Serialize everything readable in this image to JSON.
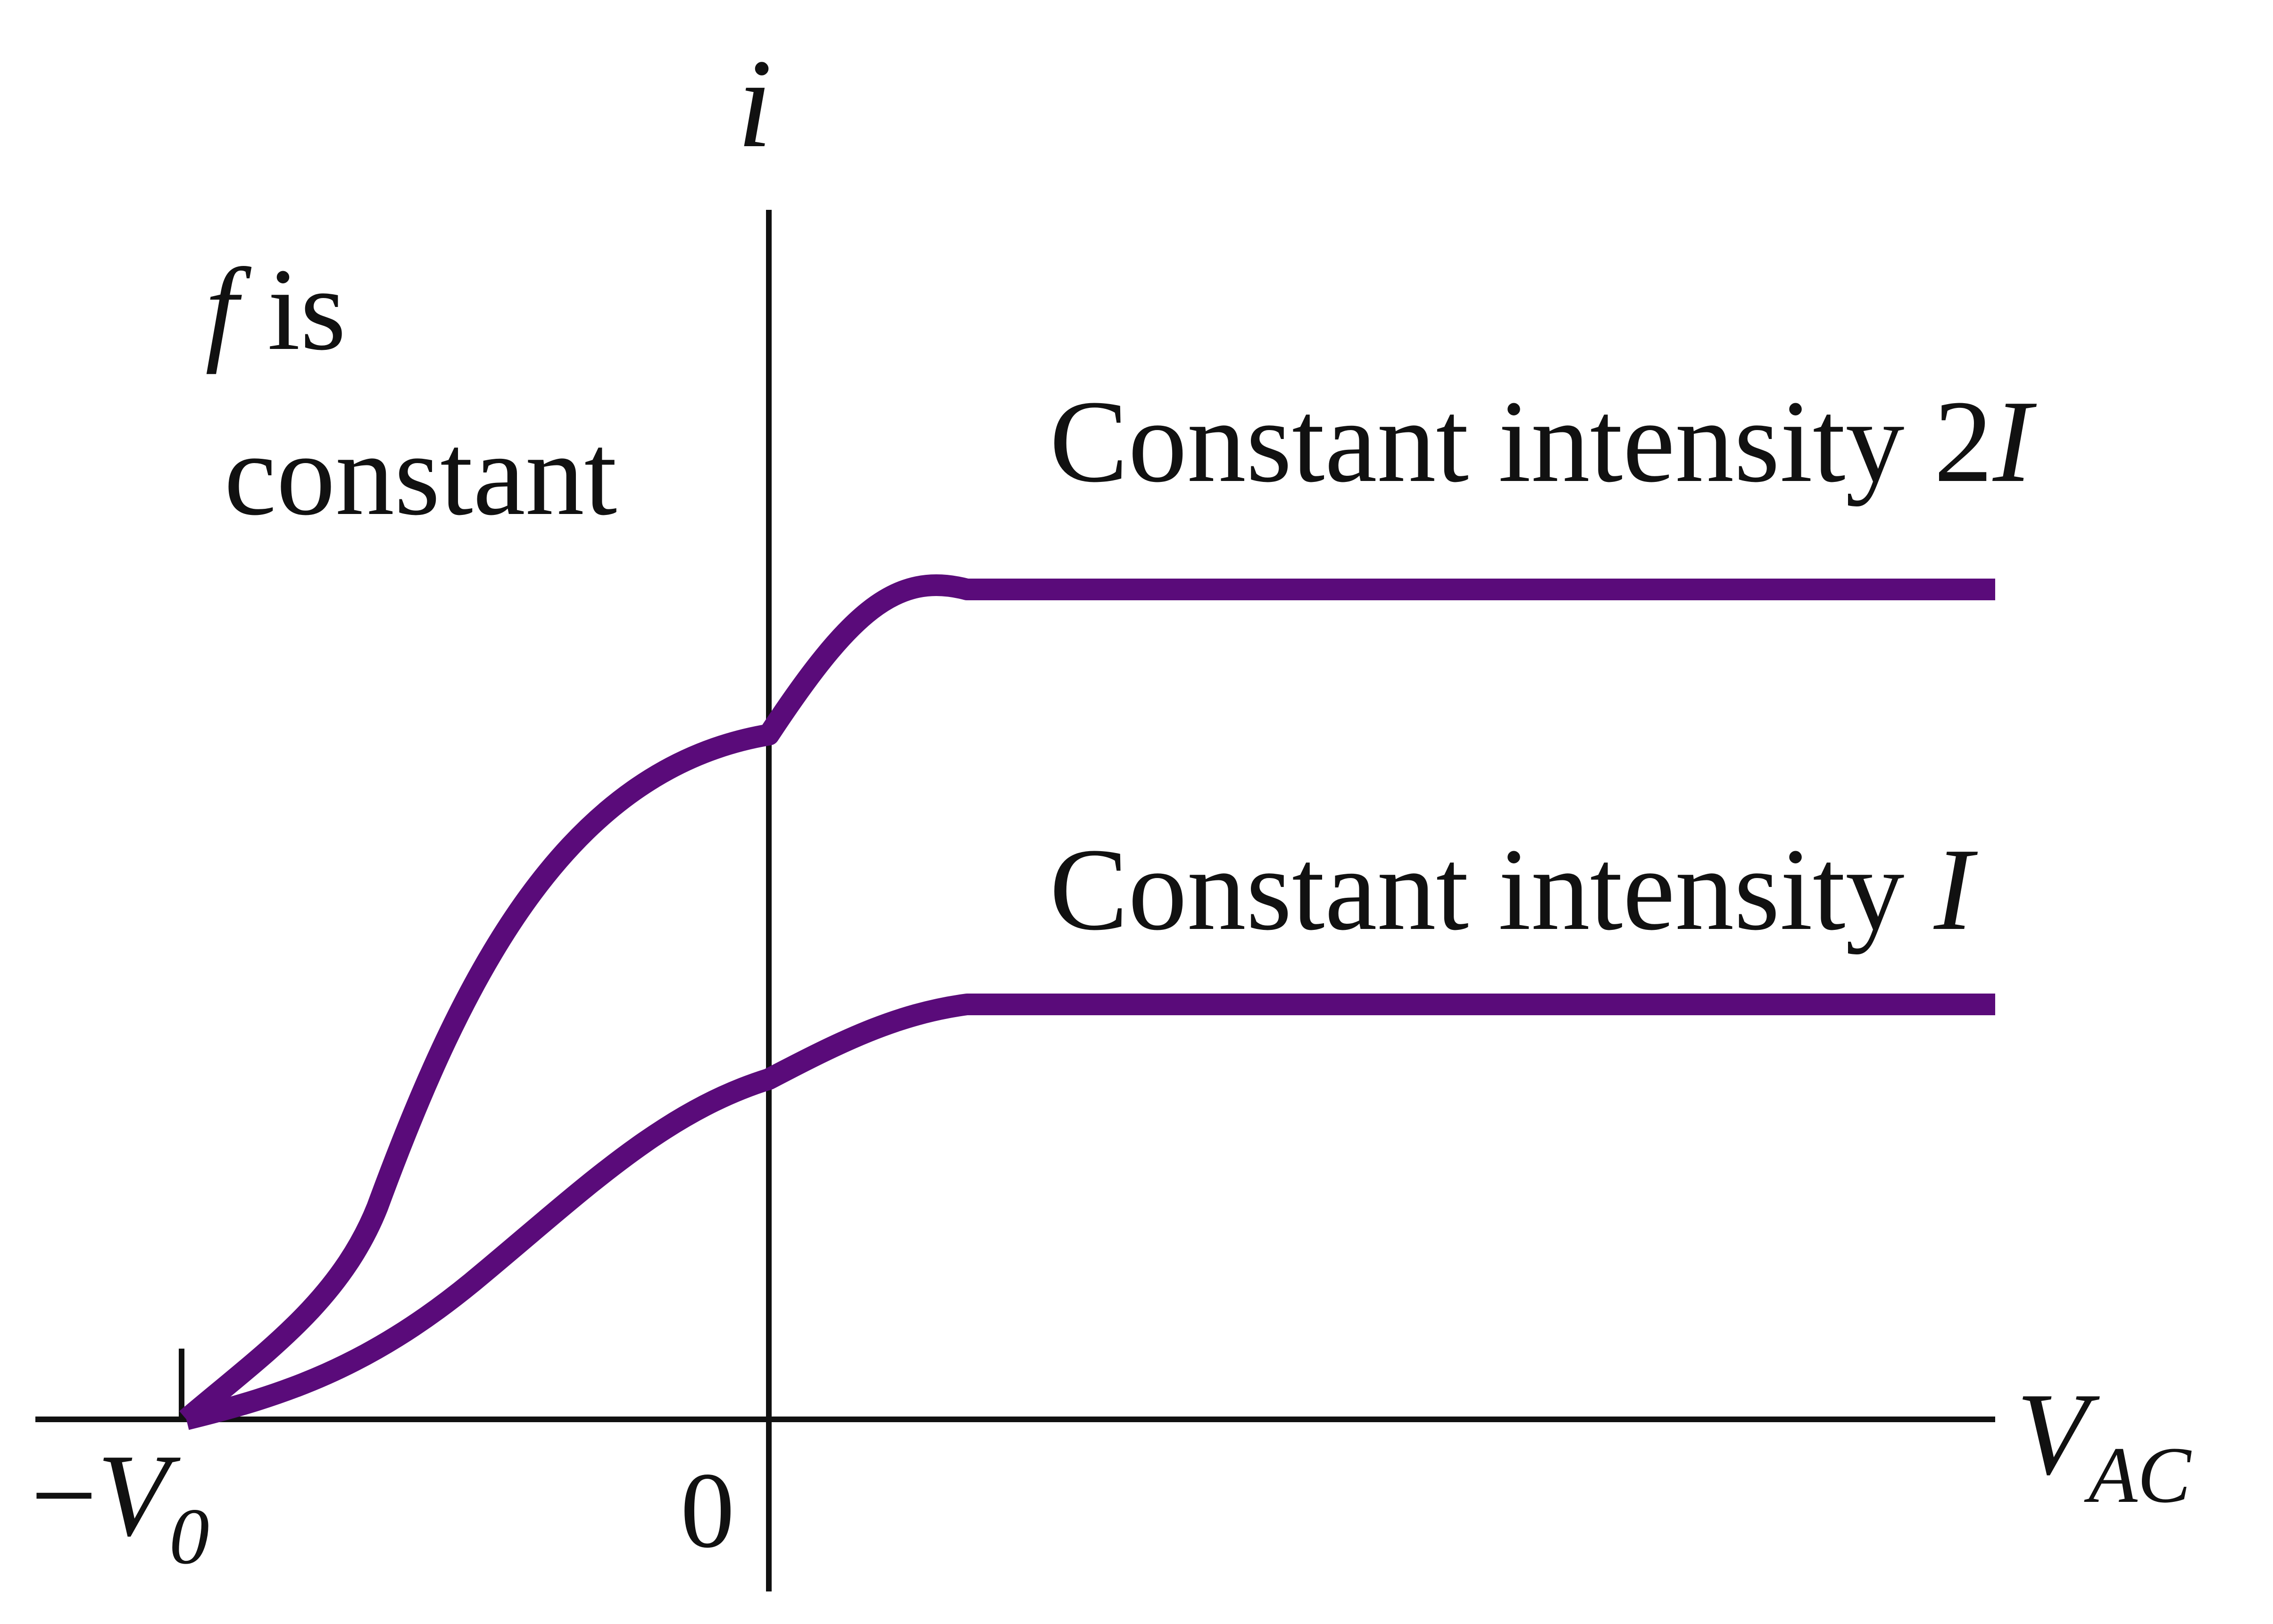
{
  "chart_data": {
    "type": "line",
    "x_axis": {
      "label": "V",
      "label_subscript": "AC",
      "ticks": [
        {
          "role": "stopping-potential",
          "prefix": "−",
          "symbol": "V",
          "subscript": "0"
        },
        {
          "role": "origin",
          "text": "0"
        }
      ]
    },
    "y_axis": {
      "label": "i"
    },
    "annotation": {
      "italic_symbol": "f",
      "text_line1": " is",
      "text_line2": "constant"
    },
    "series": [
      {
        "key": "high",
        "label_text": "Constant intensity 2",
        "label_symbol": "I",
        "saturation_current": 2,
        "current_at_zero": 1.65,
        "color": "#5a0b7a"
      },
      {
        "key": "low",
        "label_text": "Constant intensity ",
        "label_symbol": "I",
        "saturation_current": 1,
        "current_at_zero": 0.82,
        "color": "#5a0b7a"
      }
    ],
    "axis_color": "#111111",
    "grid": false,
    "legend": "inline labels above each curve"
  }
}
